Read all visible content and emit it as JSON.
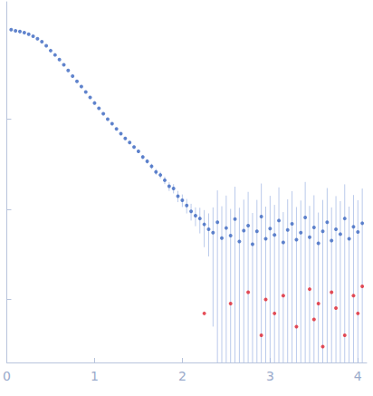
{
  "chart_data": {
    "type": "scatter",
    "log": "y",
    "grid": false,
    "tick_labels": "x",
    "xlim": [
      0,
      4.1
    ],
    "xticks": [
      0,
      1,
      2,
      3,
      4
    ],
    "ylim": [
      0.0002,
      2
    ],
    "yticks": [
      0.001,
      0.01,
      0.1
    ],
    "series": [
      {
        "color": "#3b66c0",
        "x": [
          0.05,
          0.1,
          0.15,
          0.2,
          0.25,
          0.3,
          0.35,
          0.4,
          0.45,
          0.5,
          0.55,
          0.6,
          0.65,
          0.7,
          0.75,
          0.8,
          0.85,
          0.9,
          0.95,
          1.0,
          1.05,
          1.1,
          1.15,
          1.2,
          1.25,
          1.3,
          1.35,
          1.4,
          1.45,
          1.5,
          1.55,
          1.6,
          1.65,
          1.7,
          1.75,
          1.8,
          1.85,
          1.9,
          1.95,
          2.0,
          2.05,
          2.1,
          2.15,
          2.2,
          2.25,
          2.3,
          2.35,
          2.4,
          2.45,
          2.5,
          2.55,
          2.6,
          2.65,
          2.7,
          2.75,
          2.8,
          2.85,
          2.9,
          2.95,
          3.0,
          3.05,
          3.1,
          3.15,
          3.2,
          3.25,
          3.3,
          3.35,
          3.4,
          3.45,
          3.5,
          3.55,
          3.6,
          3.65,
          3.7,
          3.75,
          3.8,
          3.85,
          3.9,
          3.95,
          4.0,
          4.05
        ],
        "values": [
          0.98,
          0.955,
          0.935,
          0.912,
          0.875,
          0.832,
          0.78,
          0.724,
          0.65,
          0.575,
          0.515,
          0.457,
          0.4,
          0.347,
          0.3,
          0.263,
          0.23,
          0.2,
          0.174,
          0.151,
          0.132,
          0.115,
          0.1,
          0.089,
          0.078,
          0.069,
          0.061,
          0.055,
          0.049,
          0.044,
          0.038,
          0.034,
          0.03,
          0.026,
          0.024,
          0.021,
          0.018,
          0.017,
          0.014,
          0.0126,
          0.011,
          0.0095,
          0.0085,
          0.0079,
          0.0068,
          0.006,
          0.0055,
          0.0072,
          0.0048,
          0.0062,
          0.0051,
          0.0078,
          0.0044,
          0.0058,
          0.0066,
          0.0041,
          0.0057,
          0.0083,
          0.0047,
          0.0061,
          0.0052,
          0.0075,
          0.0043,
          0.0059,
          0.0069,
          0.0046,
          0.0055,
          0.0081,
          0.0049,
          0.0063,
          0.0042,
          0.0057,
          0.0072,
          0.0045,
          0.006,
          0.0053,
          0.0079,
          0.0047,
          0.0064,
          0.0056,
          0.007
        ],
        "errors": [
          0.01,
          0.005,
          0.005,
          0.005,
          0.004,
          0.004,
          0.004,
          0.004,
          0.003,
          0.003,
          0.003,
          0.003,
          0.003,
          0.002,
          0.002,
          0.002,
          0.002,
          0.002,
          0.002,
          0.002,
          0.002,
          0.002,
          0.002,
          0.002,
          0.002,
          0.002,
          0.002,
          0.002,
          0.002,
          0.002,
          0.002,
          0.002,
          0.002,
          0.002,
          0.002,
          0.002,
          0.002,
          0.002,
          0.002,
          0.002,
          0.002,
          0.002,
          0.002,
          0.0025,
          0.003,
          0.003,
          0.005,
          0.009,
          0.006,
          0.008,
          0.005,
          0.01,
          0.006,
          0.007,
          0.009,
          0.005,
          0.007,
          0.011,
          0.006,
          0.008,
          0.006,
          0.01,
          0.005,
          0.007,
          0.009,
          0.006,
          0.007,
          0.012,
          0.006,
          0.008,
          0.005,
          0.007,
          0.01,
          0.006,
          0.008,
          0.007,
          0.011,
          0.006,
          0.008,
          0.007,
          0.01
        ]
      },
      {
        "color": "#e0232e",
        "x": [
          2.25,
          2.55,
          2.75,
          2.9,
          2.95,
          3.05,
          3.15,
          3.3,
          3.45,
          3.5,
          3.55,
          3.6,
          3.7,
          3.75,
          3.85,
          3.95,
          4.0,
          4.05
        ],
        "values": [
          0.0007,
          0.0009,
          0.0012,
          0.0004,
          0.001,
          0.0007,
          0.0011,
          0.0005,
          0.0013,
          0.0006,
          0.0009,
          0.0003,
          0.0012,
          0.0008,
          0.0004,
          0.0011,
          0.0007,
          0.0014
        ]
      }
    ]
  }
}
